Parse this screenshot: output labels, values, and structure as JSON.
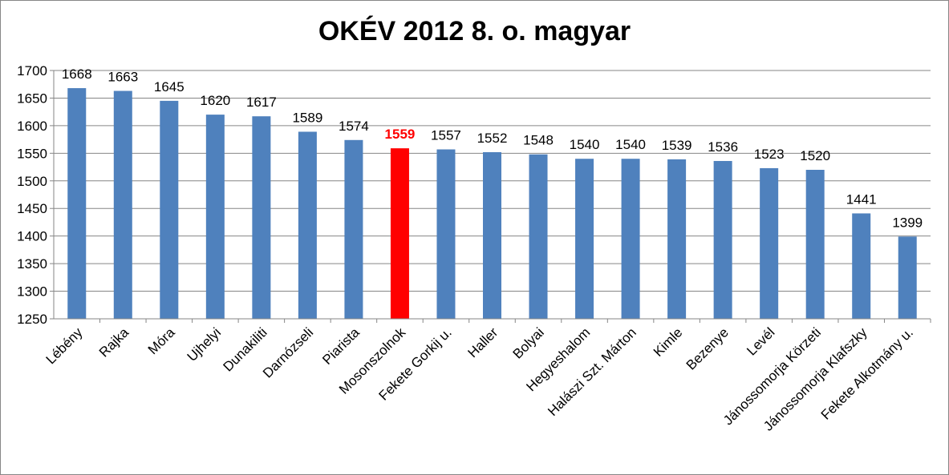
{
  "chart_data": {
    "type": "bar",
    "title": "OKÉV 2012 8. o. magyar",
    "categories": [
      "Lébény",
      "Rajka",
      "Móra",
      "Ujhelyi",
      "Dunakiliti",
      "Darnózseli",
      "Piarista",
      "Mosonszolnok",
      "Fekete Gorkij u.",
      "Haller",
      "Bolyai",
      "Hegyeshalom",
      "Halászi Szt. Márton",
      "Kimle",
      "Bezenye",
      "Levél",
      "Jánossomorja Körzeti",
      "Jánossomorja Klafszky",
      "Fekete Alkotmány u."
    ],
    "values": [
      1668,
      1663,
      1645,
      1620,
      1617,
      1589,
      1574,
      1559,
      1557,
      1552,
      1548,
      1540,
      1540,
      1539,
      1536,
      1523,
      1520,
      1441,
      1399
    ],
    "highlight_category": "Mosonszolnok",
    "ylim": [
      1250,
      1700
    ],
    "ytick_step": 50,
    "grid": true,
    "legend": "none",
    "colors": {
      "bar": "#4f81bd",
      "highlight": "#ff0000",
      "highlight_label": "#ff0000",
      "grid": "#868686"
    }
  }
}
